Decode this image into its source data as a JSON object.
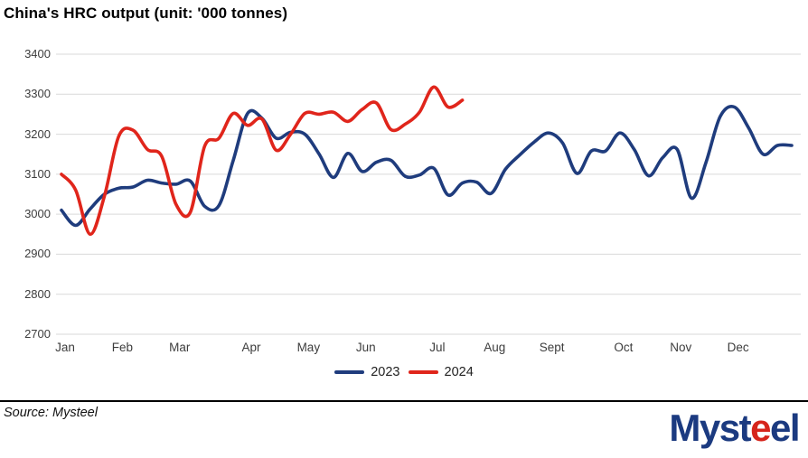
{
  "title": "China's HRC output (unit: '000 tonnes)",
  "source_note": "Source: Mysteel",
  "logo": {
    "part1": "Myst",
    "part2": "e",
    "part3": "el",
    "blue": "#1b3a80",
    "red": "#d6251c"
  },
  "legend": {
    "items": [
      {
        "label": "2023",
        "color": "#1f3c7d"
      },
      {
        "label": "2024",
        "color": "#e0251b"
      }
    ],
    "position": "bottom-center"
  },
  "colors": {
    "gridline": "#d9d9d9",
    "axis_text": "#3d3d3d",
    "title_text": "#000000"
  },
  "chart_data": {
    "type": "line",
    "title": "China's HRC output (unit: '000 tonnes)",
    "unit": "'000 tonnes",
    "grid": "horizontal",
    "legend_position": "bottom-center",
    "x_axis": {
      "granularity": "weekly",
      "tick_labels": [
        "Jan",
        "Feb",
        "Mar",
        "Apr",
        "May",
        "Jun",
        "Jul",
        "Aug",
        "Sept",
        "Oct",
        "Nov",
        "Dec"
      ],
      "month_start_week": [
        0,
        4,
        8,
        13,
        17,
        21,
        26,
        30,
        34,
        39,
        43,
        47
      ],
      "total_weeks": 52
    },
    "y_axis": {
      "min": 2700,
      "max": 3400,
      "ticks": [
        3400,
        3300,
        3200,
        3100,
        3000,
        2900,
        2800,
        2700
      ]
    },
    "series": [
      {
        "name": "2023",
        "color": "#1f3c7d",
        "start_week": 0,
        "values": [
          3010,
          2972,
          3013,
          3050,
          3065,
          3068,
          3085,
          3078,
          3075,
          3083,
          3020,
          3022,
          3135,
          3252,
          3240,
          3190,
          3205,
          3200,
          3150,
          3092,
          3152,
          3107,
          3130,
          3135,
          3095,
          3098,
          3115,
          3048,
          3078,
          3080,
          3052,
          3112,
          3148,
          3180,
          3203,
          3178,
          3102,
          3158,
          3158,
          3203,
          3162,
          3096,
          3142,
          3162,
          3040,
          3128,
          3244,
          3268,
          3215,
          3150,
          3172,
          3172
        ]
      },
      {
        "name": "2024",
        "color": "#e0251b",
        "start_week": 0,
        "values": [
          3100,
          3060,
          2950,
          3045,
          3195,
          3210,
          3162,
          3145,
          3025,
          3005,
          3170,
          3190,
          3252,
          3222,
          3238,
          3160,
          3200,
          3252,
          3250,
          3255,
          3232,
          3262,
          3278,
          3212,
          3225,
          3255,
          3318,
          3268,
          3285
        ]
      }
    ]
  }
}
